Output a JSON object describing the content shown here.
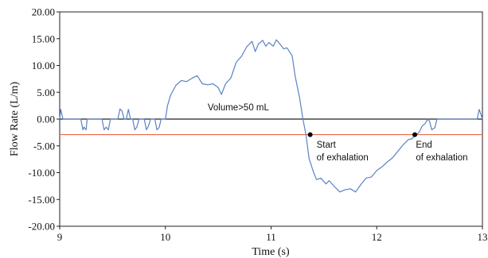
{
  "chart_data": {
    "type": "line",
    "xlabel": "Time (s)",
    "ylabel": "Flow Rate (L/m)",
    "xlim": [
      9,
      13
    ],
    "ylim": [
      -20,
      20
    ],
    "x_ticks": [
      9,
      10,
      11,
      12,
      13
    ],
    "x_tick_labels": [
      "9",
      "10",
      "11",
      "12",
      "13"
    ],
    "y_ticks": [
      20,
      15,
      10,
      5,
      0,
      -5,
      -10,
      -15,
      -20
    ],
    "y_tick_labels": [
      "20.00",
      "15.00",
      "10.00",
      "5.00",
      "0.00",
      "-5.00",
      "-10.00",
      "-15.00",
      "-20.00"
    ],
    "grid": false,
    "colors": {
      "flow": "#5b82c4",
      "threshold": "#e8694a",
      "zero": "#222222",
      "marker": "#000000"
    },
    "reference_lines": [
      {
        "name": "zero",
        "y": 0
      },
      {
        "name": "threshold",
        "y": -2.9
      }
    ],
    "annotations": [
      {
        "text": "Volume>50 mL",
        "x": 10.4,
        "y": 1.6
      },
      {
        "lines": [
          "Start",
          "of exhalation"
        ],
        "x": 11.43,
        "y": -5.3,
        "marker": [
          11.37,
          -2.9
        ]
      },
      {
        "lines": [
          "End",
          "of exhalation"
        ],
        "x": 12.37,
        "y": -5.3,
        "marker": [
          12.36,
          -2.9
        ]
      }
    ],
    "series": [
      {
        "x": [
          9.0,
          9.01,
          9.03,
          9.2,
          9.22,
          9.23,
          9.25,
          9.26,
          9.28,
          9.4,
          9.42,
          9.44,
          9.46,
          9.48,
          9.5,
          9.55,
          9.57,
          9.59,
          9.61,
          9.63,
          9.65,
          9.67,
          9.69,
          9.71,
          9.73,
          9.75,
          9.8,
          9.82,
          9.84,
          9.86,
          9.88,
          9.9,
          9.92,
          9.94,
          9.96,
          10.0,
          10.02,
          10.05,
          10.1,
          10.15,
          10.2,
          10.25,
          10.3,
          10.35,
          10.4,
          10.45,
          10.5,
          10.53,
          10.57,
          10.62,
          10.67,
          10.72,
          10.77,
          10.82,
          10.85,
          10.88,
          10.92,
          10.95,
          10.98,
          11.02,
          11.05,
          11.08,
          11.12,
          11.15,
          11.2,
          11.23,
          11.27,
          11.3,
          11.33,
          11.36,
          11.4,
          11.43,
          11.47,
          11.52,
          11.55,
          11.6,
          11.65,
          11.7,
          11.75,
          11.8,
          11.85,
          11.9,
          11.95,
          12.0,
          12.05,
          12.1,
          12.15,
          12.2,
          12.25,
          12.3,
          12.33,
          12.37,
          12.4,
          12.43,
          12.46,
          12.48,
          12.5,
          12.52,
          12.55,
          12.57,
          12.6,
          12.95,
          12.97,
          12.99,
          13.0
        ],
        "y": [
          0.0,
          1.8,
          0.0,
          0.0,
          -2.0,
          -1.5,
          -2.0,
          0.0,
          0.0,
          0.0,
          -2.0,
          -1.5,
          -2.0,
          0.0,
          0.0,
          0.0,
          1.9,
          1.5,
          0.0,
          0.0,
          1.8,
          0.0,
          0.0,
          -2.0,
          -1.5,
          0.0,
          0.0,
          -2.0,
          -1.3,
          0.0,
          0.0,
          0.0,
          -2.0,
          -1.6,
          0.0,
          0.0,
          2.5,
          4.5,
          6.3,
          7.2,
          7.0,
          7.6,
          8.1,
          6.6,
          6.4,
          6.6,
          5.9,
          4.6,
          6.6,
          7.7,
          10.6,
          11.7,
          13.5,
          14.5,
          12.6,
          14.0,
          14.7,
          13.6,
          14.3,
          13.6,
          14.8,
          14.1,
          13.1,
          13.3,
          11.8,
          7.8,
          4.0,
          0.2,
          -2.9,
          -7.4,
          -9.8,
          -11.3,
          -11.0,
          -12.1,
          -11.5,
          -12.6,
          -13.6,
          -13.2,
          -13.0,
          -13.6,
          -12.2,
          -11.0,
          -10.8,
          -9.6,
          -8.9,
          -8.0,
          -7.2,
          -6.0,
          -4.8,
          -3.8,
          -3.7,
          -2.9,
          -2.5,
          -1.3,
          -0.8,
          0.0,
          -0.4,
          -2.0,
          -1.6,
          0.0,
          0.0,
          0.0,
          1.8,
          0.6,
          0.0
        ]
      }
    ]
  }
}
